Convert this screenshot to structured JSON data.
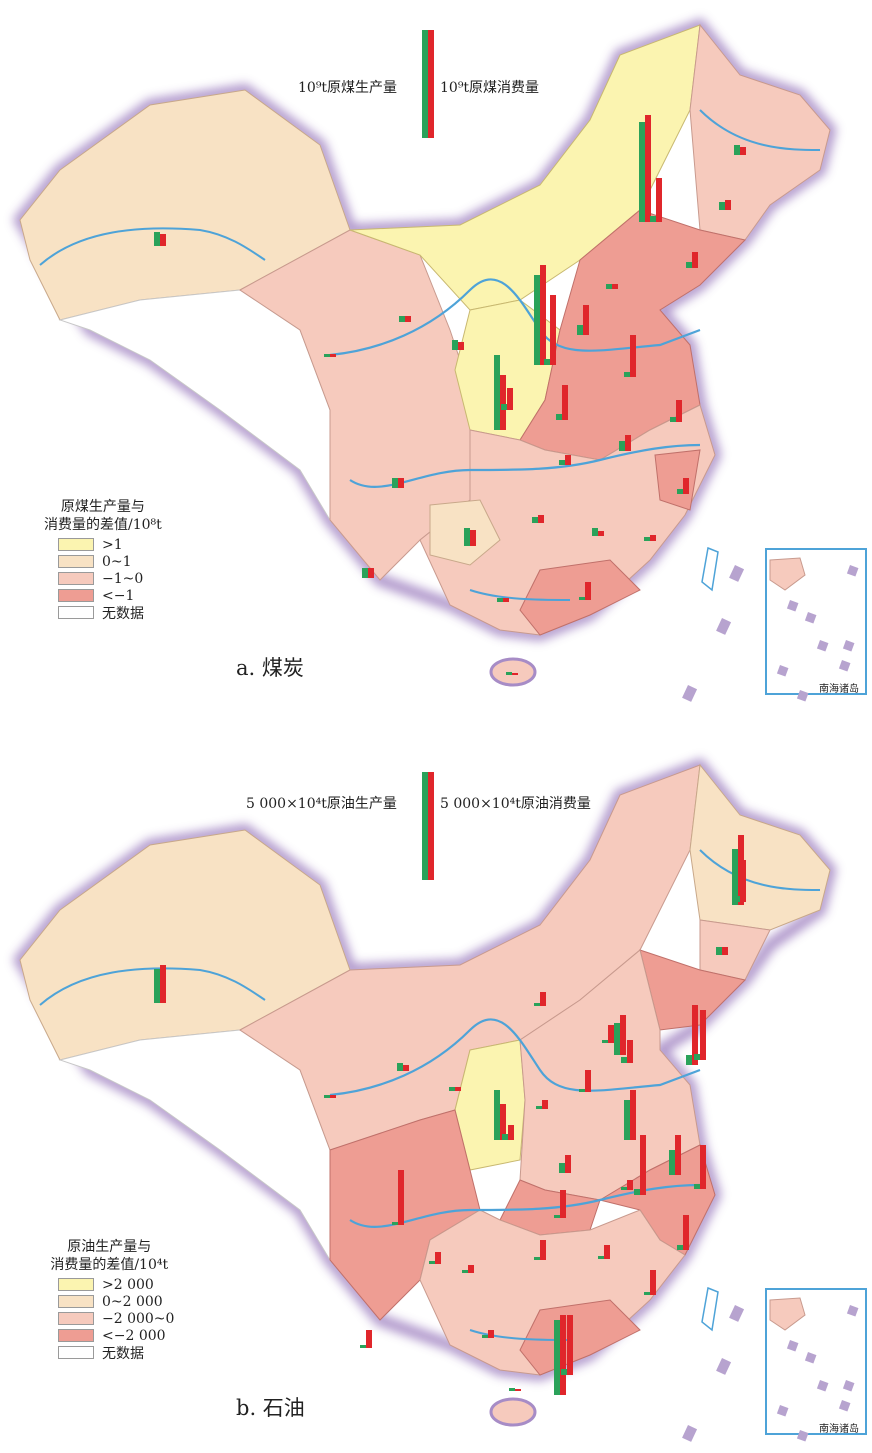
{
  "maps": [
    {
      "key": {
        "left_label": "10⁹t原煤生产量",
        "right_label": "10⁹t原煤消费量"
      },
      "legend": {
        "title_line1": "原煤生产量与",
        "title_line2": "消费量的差值/10⁸t",
        "items": [
          {
            "label": ">1",
            "color": "#fbf4b0"
          },
          {
            "label": "0~1",
            "color": "#f8e2c4"
          },
          {
            "label": "−1~0",
            "color": "#f6cabd"
          },
          {
            "label": "<−1",
            "color": "#ee9d93"
          },
          {
            "label": "无数据",
            "color": "#ffffff"
          }
        ]
      },
      "caption": "a. 煤炭",
      "inset_label": "南海诸岛"
    },
    {
      "key": {
        "left_label": "5 000×10⁴t原油生产量",
        "right_label": "5 000×10⁴t原油消费量"
      },
      "legend": {
        "title_line1": "原油生产量与",
        "title_line2": "消费量的差值/10⁴t",
        "items": [
          {
            "label": ">2 000",
            "color": "#fbf4b0"
          },
          {
            "label": "0~2 000",
            "color": "#f8e2c4"
          },
          {
            "label": "−2 000~0",
            "color": "#f6cabd"
          },
          {
            "label": "<−2 000",
            "color": "#ee9d93"
          },
          {
            "label": "无数据",
            "color": "#ffffff"
          }
        ]
      },
      "caption": "b. 石油",
      "inset_label": "南海诸岛"
    }
  ],
  "colors": {
    "production": "#2aa25a",
    "consumption": "#e0262b",
    "river": "#4ea3d8",
    "border_glow": "#a78cc6"
  }
}
